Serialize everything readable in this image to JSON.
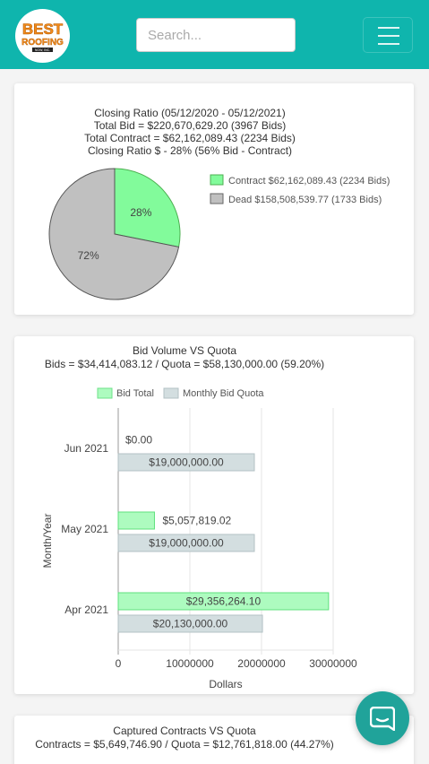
{
  "header": {
    "logo": {
      "line1": "BEST",
      "line2": "ROOFING",
      "line3": "NOW, INC."
    },
    "search": {
      "placeholder": "Search..."
    },
    "menu_icon": "hamburger-icon",
    "colors": {
      "bar": "#0fb5ad",
      "logo_orange": "#f28c1d"
    }
  },
  "closing_ratio": {
    "title_lines": [
      "Closing Ratio (05/12/2020 - 05/12/2021)",
      "Total Bid = $220,670,629.20 (3967 Bids)",
      "Total Contract = $62,162,089.43 (2234 Bids)",
      "Closing Ratio $ - 28% (56% Bid - Contract)"
    ],
    "legend": [
      "Contract $62,162,089.43 (2234 Bids)",
      "Dead $158,508,539.77 (1733 Bids)"
    ],
    "slice_labels": [
      "28%",
      "72%"
    ]
  },
  "bid_volume": {
    "title_lines": [
      "Bid Volume VS Quota",
      "Bids = $34,414,083.12 / Quota = $58,130,000.00 (59.20%)"
    ],
    "legend": [
      "Bid Total",
      "Monthly Bid Quota"
    ],
    "bid_labels": [
      "$0.00",
      "$5,057,819.02",
      "$29,356,264.10"
    ],
    "quota_labels": [
      "$19,000,000.00",
      "$19,000,000.00",
      "$20,130,000.00"
    ],
    "y_ticks": [
      "Jun 2021",
      "May 2021",
      "Apr 2021"
    ],
    "x_ticks": [
      "0",
      "10000000",
      "20000000",
      "30000000"
    ],
    "xlabel": "Dollars",
    "ylabel": "Month/Year"
  },
  "captured_contracts": {
    "title_lines": [
      "Captured Contracts VS Quota",
      "Contracts = $5,649,746.90 / Quota = $12,761,818.00 (44.27%)"
    ]
  },
  "chat": {
    "icon": "chat-bubble-icon",
    "color": "#20a39a"
  },
  "chart_data": [
    {
      "type": "pie",
      "title": "Closing Ratio (05/12/2020 - 05/12/2021)",
      "labels": [
        "Contract $62,162,089.43 (2234 Bids)",
        "Dead $158,508,539.77 (1733 Bids)"
      ],
      "values": [
        62162089.43,
        158508539.77
      ],
      "colors": [
        "#82fb9b",
        "#c0c0c0"
      ],
      "legend": "right"
    },
    {
      "type": "bar",
      "orientation": "horizontal",
      "title": "Bid Volume VS Quota",
      "categories": [
        "Jun 2021",
        "May 2021",
        "Apr 2021"
      ],
      "series": [
        {
          "name": "Bid Total",
          "values": [
            0,
            5057819.02,
            29356264.1
          ],
          "color": "#adfbbf"
        },
        {
          "name": "Monthly Bid Quota",
          "values": [
            19000000,
            19000000,
            20130000
          ],
          "color": "#d3dee0"
        }
      ],
      "xlim": [
        0,
        30000000
      ],
      "xlabel": "Dollars",
      "ylabel": "Month/Year",
      "grid": true,
      "legend": "top"
    }
  ]
}
